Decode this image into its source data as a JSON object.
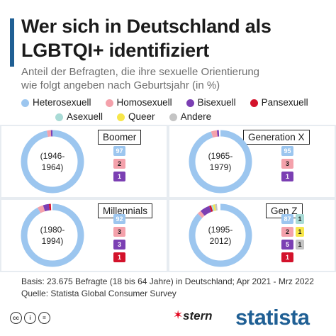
{
  "header": {
    "title_line1": "Wer sich in Deutschland als",
    "title_line2": "LGBTQI+ identifiziert",
    "subtitle_line1": "Anteil der Befragten, die ihre sexuelle Orientierung",
    "subtitle_line2": "wie folgt angeben nach Geburtsjahr (in %)"
  },
  "colors": {
    "Heterosexuell": "#9cc6ef",
    "Homosexuell": "#f4a1ab",
    "Bisexuell": "#7b3fb3",
    "Pansexuell": "#d3122b",
    "Asexuell": "#a9dbd6",
    "Queer": "#f7e64a",
    "Andere": "#c4c4c4"
  },
  "legend": [
    {
      "label": "Heterosexuell"
    },
    {
      "label": "Homosexuell"
    },
    {
      "label": "Bisexuell"
    },
    {
      "label": "Pansexuell"
    },
    {
      "label": "Asexuell"
    },
    {
      "label": "Queer"
    },
    {
      "label": "Andere"
    }
  ],
  "chart_data": {
    "type": "pie",
    "variant": "donut",
    "unit": "%",
    "categories": [
      "Heterosexuell",
      "Homosexuell",
      "Bisexuell",
      "Pansexuell",
      "Asexuell",
      "Queer",
      "Andere"
    ],
    "panels": [
      {
        "name": "Boomer",
        "years": "(1946-\n1964)",
        "values": {
          "Heterosexuell": 97,
          "Homosexuell": 2,
          "Bisexuell": 1
        }
      },
      {
        "name": "Generation X",
        "years": "(1965-\n1979)",
        "values": {
          "Heterosexuell": 95,
          "Homosexuell": 3,
          "Bisexuell": 1
        }
      },
      {
        "name": "Millennials",
        "years": "(1980-\n1994)",
        "values": {
          "Heterosexuell": 92,
          "Homosexuell": 3,
          "Bisexuell": 3,
          "Pansexuell": 1
        }
      },
      {
        "name": "Gen Z",
        "years": "(1995-\n2012)",
        "values": {
          "Heterosexuell": 87,
          "Homosexuell": 2,
          "Bisexuell": 5,
          "Pansexuell": 1,
          "Asexuell": 1,
          "Queer": 1,
          "Andere": 1
        }
      }
    ]
  },
  "footer": {
    "basis": "Basis: 23.675 Befragte (18 bis 64 Jahre) in Deutschland; Apr 2021 - Mrz 2022",
    "source": "Quelle: Statista Global Consumer Survey"
  },
  "branding": {
    "cc": "cc",
    "by": "i",
    "eq": "=",
    "stern": "stern",
    "statista": "statista"
  }
}
